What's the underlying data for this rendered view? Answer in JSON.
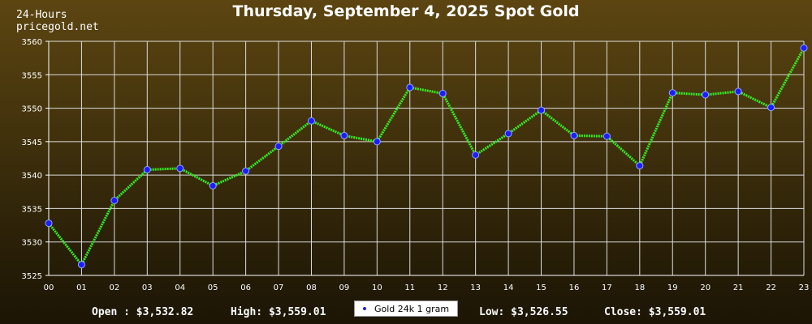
{
  "header": {
    "site_line1": "24-Hours",
    "site_line2": "pricegold.net",
    "title": "Thursday, September 4, 2025 Spot Gold"
  },
  "footer": {
    "open": "Open : $3,532.82",
    "high": "High: $3,559.01",
    "low": "Low: $3,526.55",
    "close": "Close: $3,559.01"
  },
  "colors": {
    "line": "#33ee22",
    "marker": "#1c1cff",
    "grid": "#dcdcdc",
    "axis": "#ffffff"
  },
  "chart_data": {
    "type": "line",
    "title": "Thursday, September 4, 2025 Spot Gold",
    "xlabel": "",
    "ylabel": "",
    "categories": [
      "00",
      "01",
      "02",
      "03",
      "04",
      "05",
      "06",
      "07",
      "08",
      "09",
      "10",
      "11",
      "12",
      "13",
      "14",
      "15",
      "16",
      "17",
      "18",
      "19",
      "20",
      "21",
      "22",
      "23"
    ],
    "ylim": [
      3525,
      3560
    ],
    "yticks": [
      3525,
      3530,
      3535,
      3540,
      3545,
      3550,
      3555,
      3560
    ],
    "ytick_labels": [
      "3525",
      "3530",
      "3535",
      "3540",
      "3545",
      "3550",
      "3555",
      "3560"
    ],
    "grid": true,
    "legend_position": "bottom-center",
    "series": [
      {
        "name": "Gold 24k 1 gram",
        "values": [
          3532.8,
          3526.6,
          3536.2,
          3540.8,
          3541.0,
          3538.4,
          3540.6,
          3544.3,
          3548.1,
          3545.9,
          3545.0,
          3553.1,
          3552.2,
          3543.0,
          3546.2,
          3549.7,
          3545.9,
          3545.8,
          3541.4,
          3552.3,
          3552.0,
          3552.5,
          3550.1,
          3559.0
        ]
      }
    ]
  }
}
